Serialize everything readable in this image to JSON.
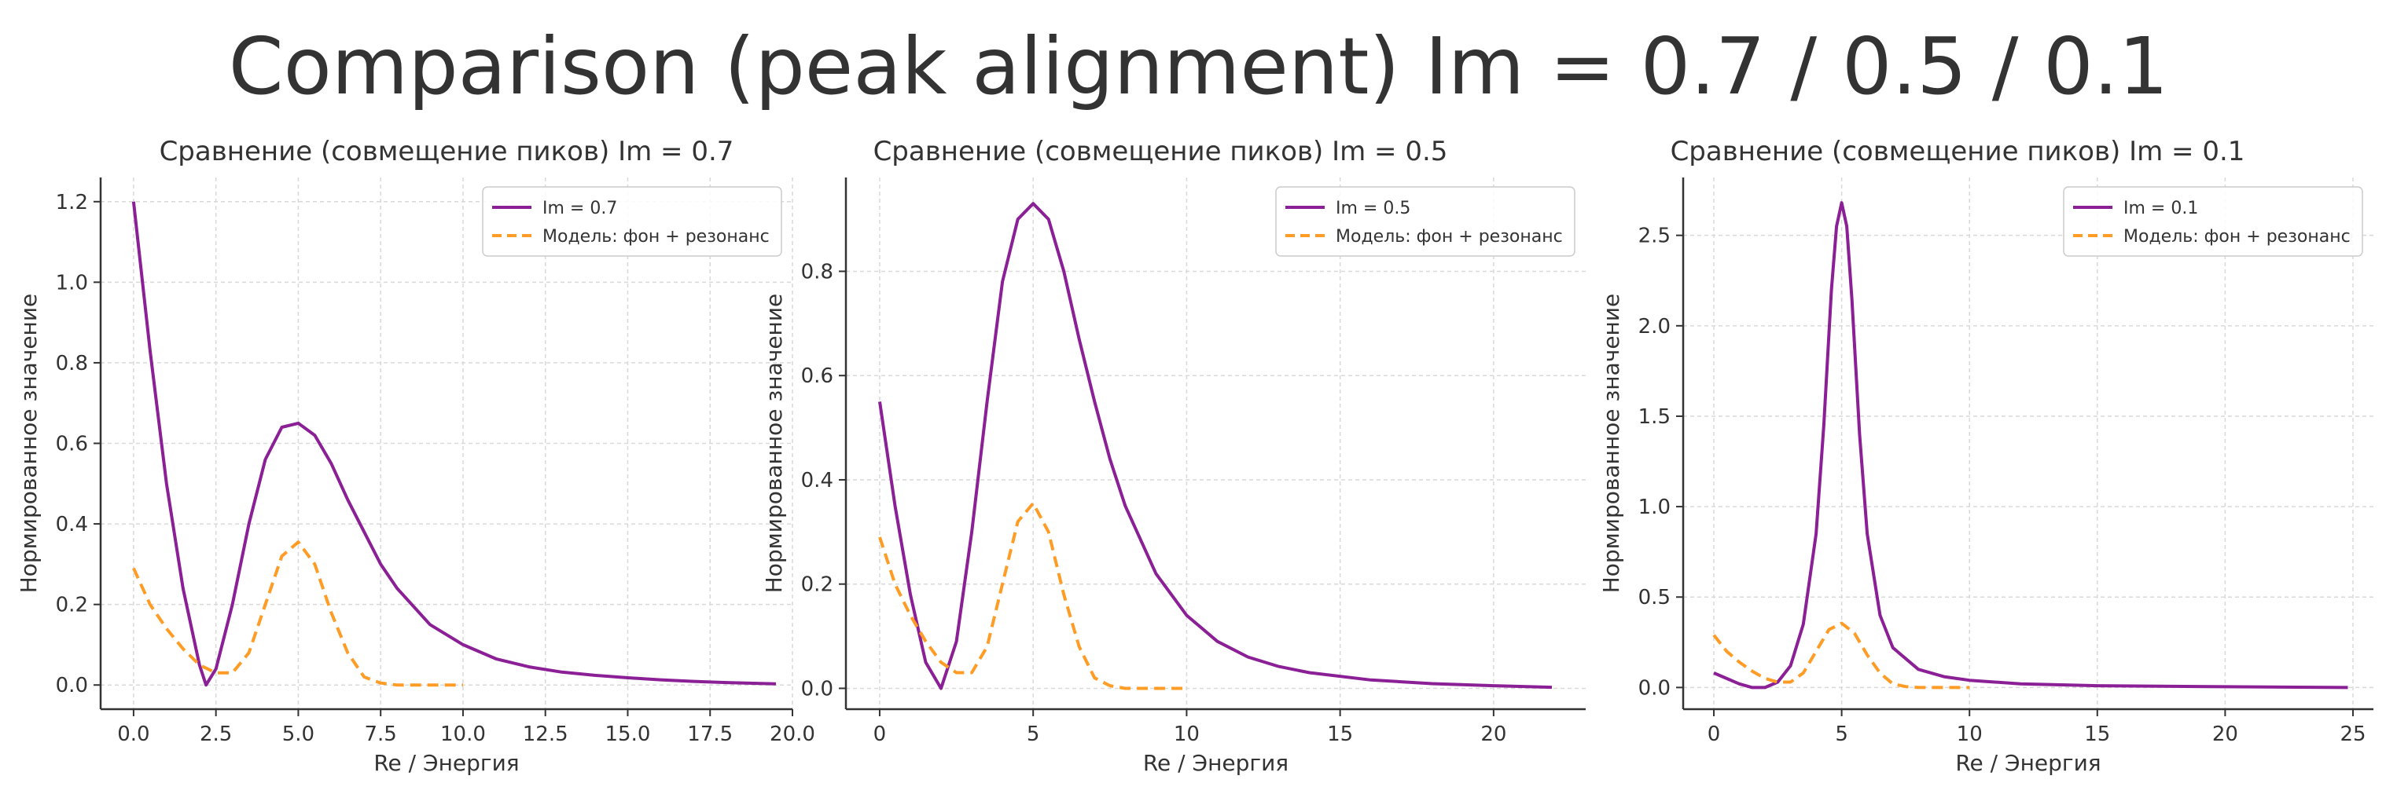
{
  "suptitle": "Comparison (peak alignment) Im = 0.7 / 0.5 / 0.1",
  "colors": {
    "resonance": "#8b1f96",
    "model": "#ff9c26",
    "grid": "#d9d9d9",
    "axis": "#333333"
  },
  "chart_data": [
    {
      "type": "line",
      "title": "Сравнение (совмещение пиков) Im = 0.7",
      "xlabel": "Re / Энергия",
      "ylabel": "Нормированное значение",
      "xlim": [
        -1.0,
        20.0
      ],
      "ylim": [
        -0.06,
        1.26
      ],
      "xticks": [
        0,
        2.5,
        5,
        7.5,
        10,
        12.5,
        15,
        17.5,
        20
      ],
      "xticklabels": [
        "0.0",
        "2.5",
        "5.0",
        "7.5",
        "10.0",
        "12.5",
        "15.0",
        "17.5",
        "20.0"
      ],
      "yticks": [
        0,
        0.2,
        0.4,
        0.6,
        0.8,
        1.0,
        1.2
      ],
      "yticklabels": [
        "0.0",
        "0.2",
        "0.4",
        "0.6",
        "0.8",
        "1.0",
        "1.2"
      ],
      "grid": true,
      "legend_position": "top-right",
      "series": [
        {
          "name": "Im = 0.7",
          "style": "solid",
          "color": "#8b1f96",
          "x": [
            0,
            0.5,
            1.0,
            1.5,
            2.0,
            2.2,
            2.5,
            3.0,
            3.5,
            4.0,
            4.5,
            5.0,
            5.5,
            6.0,
            6.5,
            7.0,
            7.5,
            8.0,
            9.0,
            10.0,
            11.0,
            12.0,
            13.0,
            14.0,
            15.0,
            16.0,
            17.0,
            18.0,
            19.5
          ],
          "y": [
            1.2,
            0.83,
            0.5,
            0.24,
            0.05,
            0.0,
            0.04,
            0.2,
            0.4,
            0.56,
            0.64,
            0.65,
            0.62,
            0.55,
            0.46,
            0.38,
            0.3,
            0.24,
            0.15,
            0.1,
            0.065,
            0.045,
            0.032,
            0.024,
            0.018,
            0.013,
            0.009,
            0.006,
            0.003
          ]
        },
        {
          "name": "Модель: фон + резонанс",
          "style": "dashed",
          "color": "#ff9c26",
          "x": [
            0,
            0.5,
            1.0,
            1.5,
            2.0,
            2.5,
            3.0,
            3.5,
            4.0,
            4.5,
            5.0,
            5.5,
            6.0,
            6.5,
            7.0,
            7.5,
            8.0,
            9.0,
            10.0
          ],
          "y": [
            0.29,
            0.2,
            0.14,
            0.09,
            0.05,
            0.03,
            0.03,
            0.08,
            0.2,
            0.32,
            0.355,
            0.3,
            0.18,
            0.08,
            0.02,
            0.005,
            0.0,
            0.0,
            0.0
          ]
        }
      ]
    },
    {
      "type": "line",
      "title": "Сравнение (совмещение пиков) Im = 0.5",
      "xlabel": "Re / Энергия",
      "ylabel": "Нормированное значение",
      "xlim": [
        -1.1,
        23.0
      ],
      "ylim": [
        -0.04,
        0.98
      ],
      "xticks": [
        0,
        5,
        10,
        15,
        20
      ],
      "xticklabels": [
        "0",
        "5",
        "10",
        "15",
        "20"
      ],
      "yticks": [
        0,
        0.2,
        0.4,
        0.6,
        0.8
      ],
      "yticklabels": [
        "0.0",
        "0.2",
        "0.4",
        "0.6",
        "0.8"
      ],
      "grid": true,
      "legend_position": "top-right",
      "series": [
        {
          "name": "Im = 0.5",
          "style": "solid",
          "color": "#8b1f96",
          "x": [
            0,
            0.5,
            1.0,
            1.5,
            2.0,
            2.5,
            3.0,
            3.5,
            4.0,
            4.5,
            5.0,
            5.5,
            6.0,
            6.5,
            7.0,
            7.5,
            8.0,
            9.0,
            10.0,
            11.0,
            12.0,
            13.0,
            14.0,
            16.0,
            18.0,
            20.0,
            21.9
          ],
          "y": [
            0.55,
            0.35,
            0.18,
            0.05,
            0.0,
            0.09,
            0.3,
            0.55,
            0.78,
            0.9,
            0.93,
            0.9,
            0.8,
            0.67,
            0.55,
            0.44,
            0.35,
            0.22,
            0.14,
            0.09,
            0.06,
            0.042,
            0.03,
            0.016,
            0.009,
            0.005,
            0.002
          ]
        },
        {
          "name": "Модель: фон + резонанс",
          "style": "dashed",
          "color": "#ff9c26",
          "x": [
            0,
            0.5,
            1.0,
            1.5,
            2.0,
            2.5,
            3.0,
            3.5,
            4.0,
            4.5,
            5.0,
            5.5,
            6.0,
            6.5,
            7.0,
            7.5,
            8.0,
            9.0,
            10.0
          ],
          "y": [
            0.29,
            0.2,
            0.14,
            0.09,
            0.05,
            0.03,
            0.03,
            0.08,
            0.2,
            0.32,
            0.355,
            0.3,
            0.18,
            0.08,
            0.02,
            0.005,
            0.0,
            0.0,
            0.0
          ]
        }
      ]
    },
    {
      "type": "line",
      "title": "Сравнение (совмещение пиков) Im = 0.1",
      "xlabel": "Re / Энергия",
      "ylabel": "Нормированное значение",
      "xlim": [
        -1.2,
        25.8
      ],
      "ylim": [
        -0.12,
        2.82
      ],
      "xticks": [
        0,
        5,
        10,
        15,
        20,
        25
      ],
      "xticklabels": [
        "0",
        "5",
        "10",
        "15",
        "20",
        "25"
      ],
      "yticks": [
        0,
        0.5,
        1.0,
        1.5,
        2.0,
        2.5
      ],
      "yticklabels": [
        "0.0",
        "0.5",
        "1.0",
        "1.5",
        "2.0",
        "2.5"
      ],
      "grid": true,
      "legend_position": "top-right",
      "series": [
        {
          "name": "Im = 0.1",
          "style": "solid",
          "color": "#8b1f96",
          "x": [
            0,
            0.5,
            1.0,
            1.5,
            2.0,
            2.5,
            3.0,
            3.5,
            4.0,
            4.3,
            4.6,
            4.8,
            5.0,
            5.2,
            5.4,
            5.7,
            6.0,
            6.5,
            7.0,
            8.0,
            9.0,
            10.0,
            12.0,
            15.0,
            20.0,
            24.8
          ],
          "y": [
            0.08,
            0.05,
            0.02,
            0.0,
            0.0,
            0.03,
            0.12,
            0.35,
            0.85,
            1.45,
            2.2,
            2.55,
            2.68,
            2.55,
            2.15,
            1.4,
            0.85,
            0.4,
            0.22,
            0.1,
            0.06,
            0.04,
            0.02,
            0.01,
            0.004,
            0.0
          ]
        },
        {
          "name": "Модель: фон + резонанс",
          "style": "dashed",
          "color": "#ff9c26",
          "x": [
            0,
            0.5,
            1.0,
            1.5,
            2.0,
            2.5,
            3.0,
            3.5,
            4.0,
            4.5,
            5.0,
            5.5,
            6.0,
            6.5,
            7.0,
            7.5,
            8.0,
            9.0,
            10.0
          ],
          "y": [
            0.29,
            0.2,
            0.14,
            0.09,
            0.05,
            0.03,
            0.03,
            0.08,
            0.2,
            0.32,
            0.355,
            0.3,
            0.18,
            0.08,
            0.02,
            0.005,
            0.0,
            0.0,
            0.0
          ]
        }
      ]
    }
  ]
}
